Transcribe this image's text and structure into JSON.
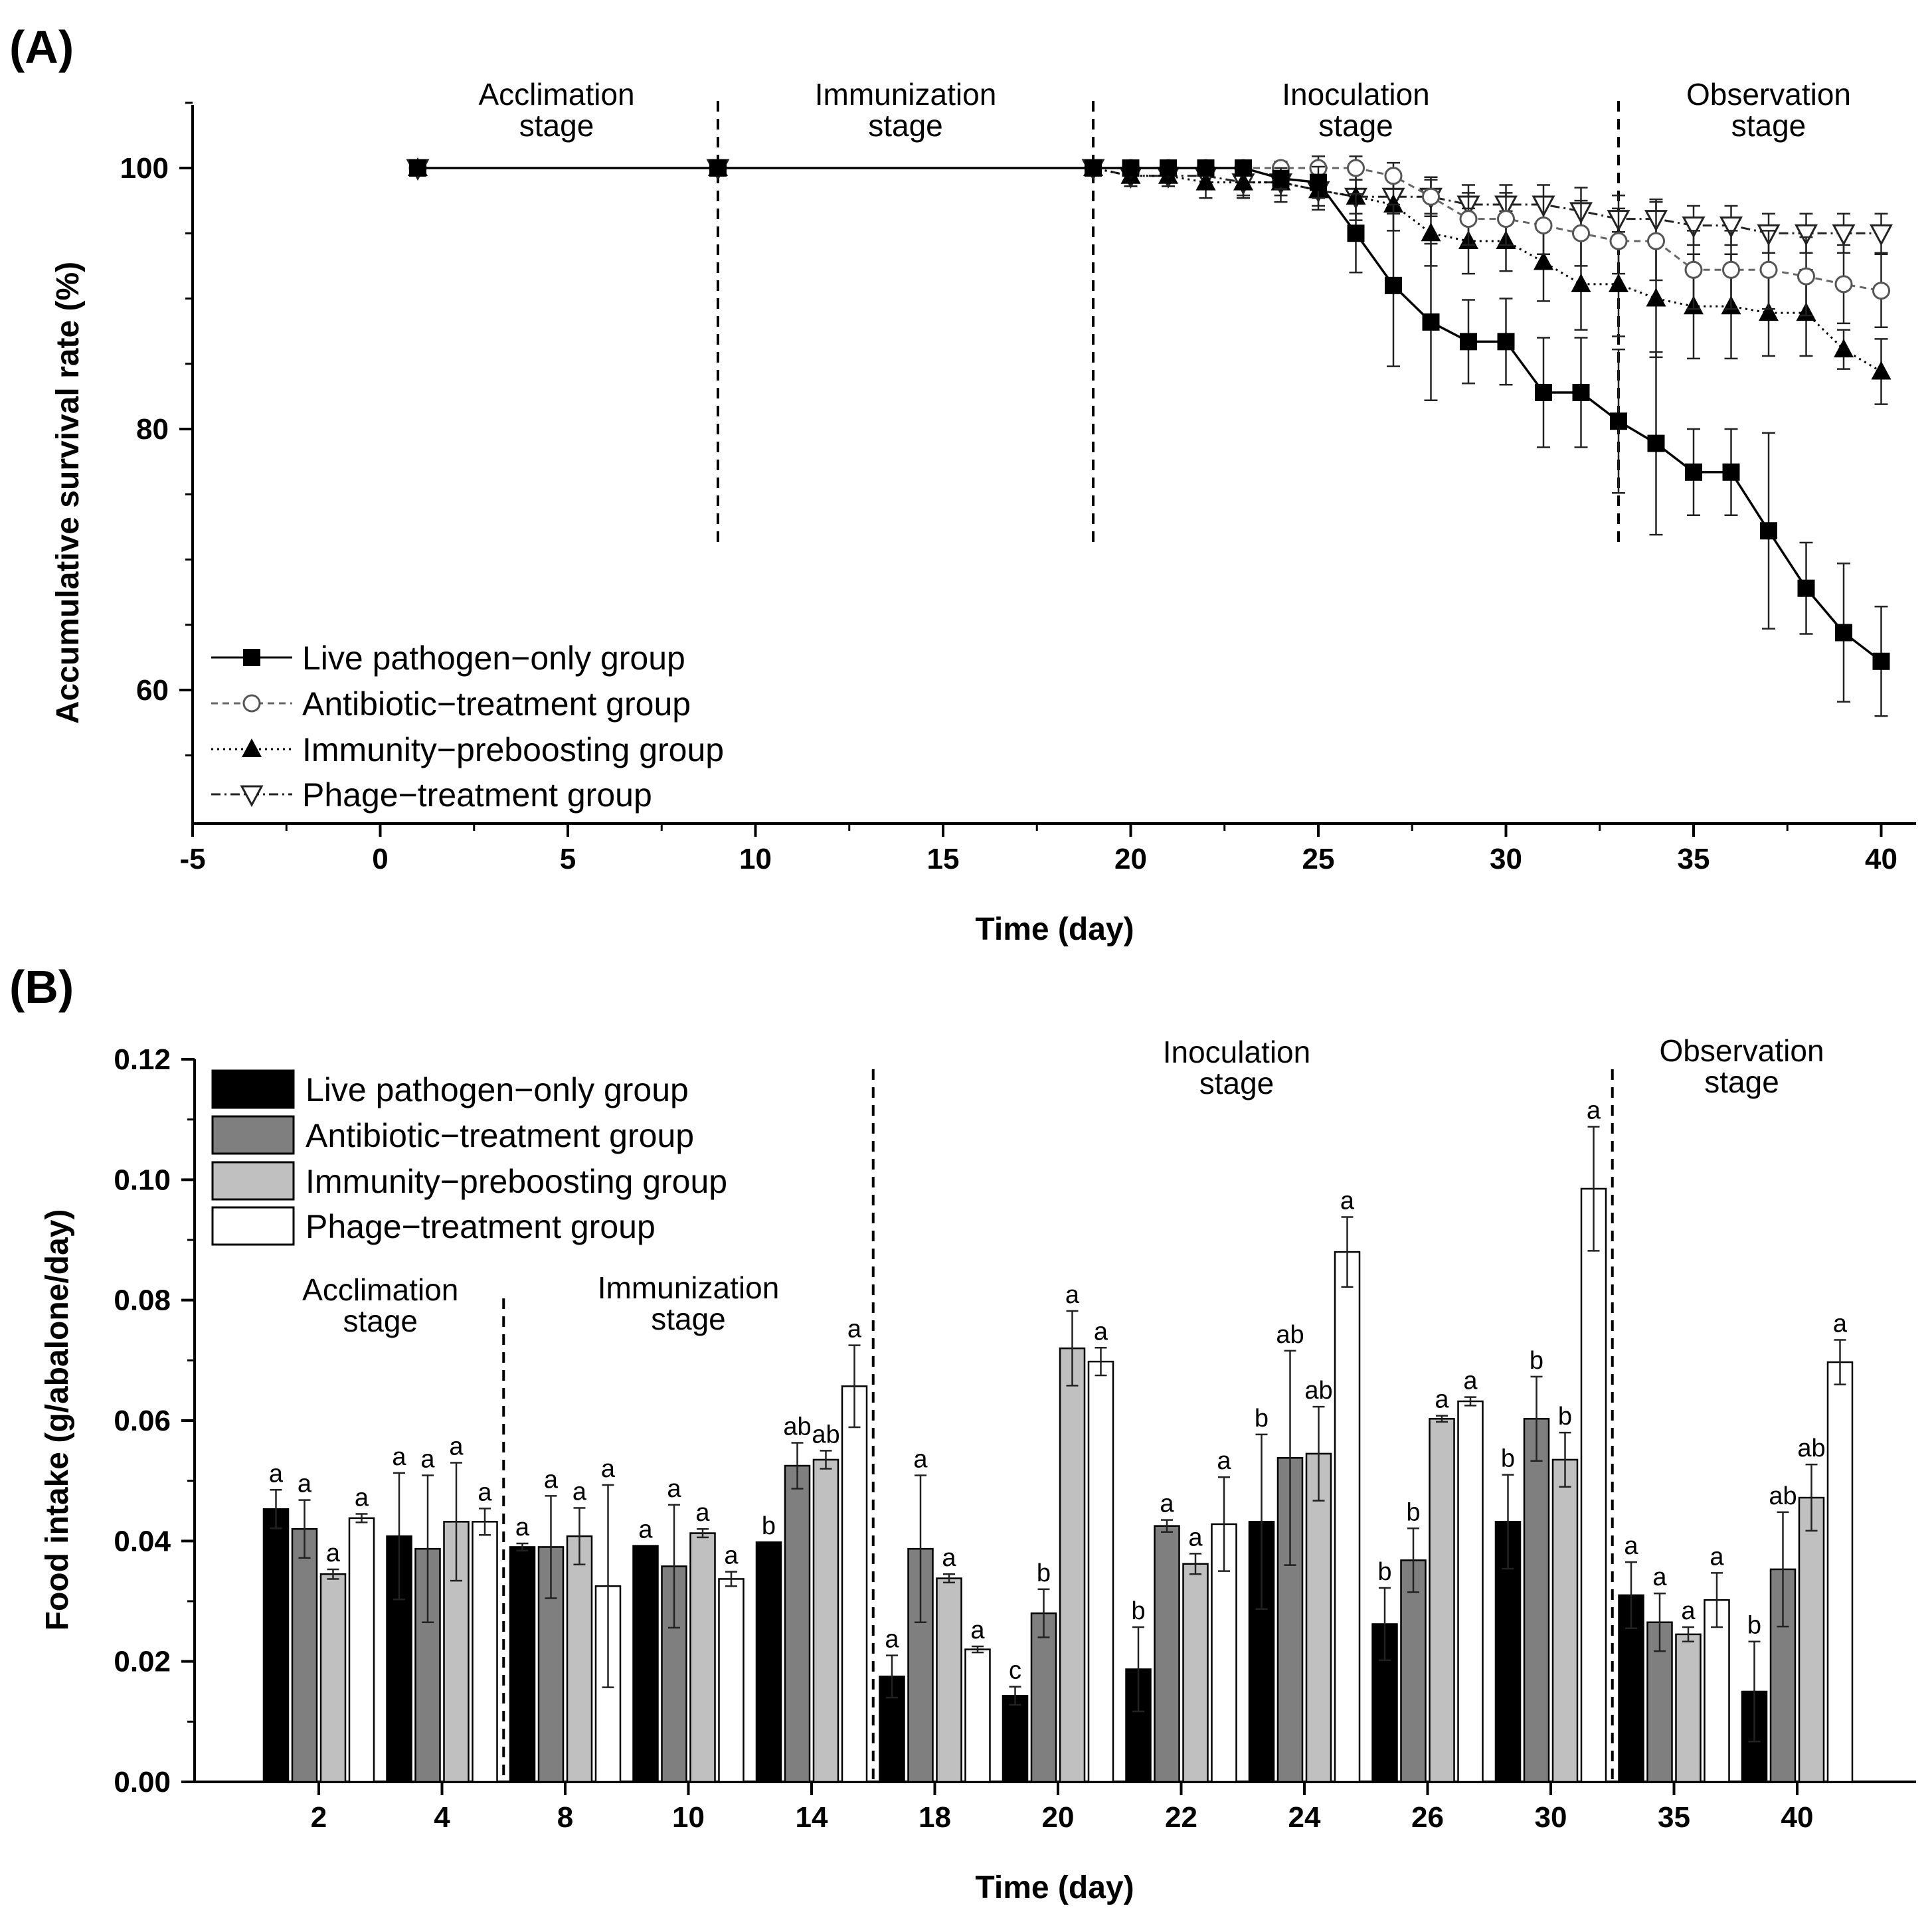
{
  "figure": {
    "panel_a_label": "(A)",
    "panel_b_label": "(B)"
  },
  "chart_data": [
    {
      "type": "line",
      "panel": "(A)",
      "title": "",
      "xlabel": "Time (day)",
      "ylabel": "Accumulative survival rate (%)",
      "xlim": [
        -5,
        41
      ],
      "ylim": [
        50,
        105
      ],
      "xticks": [
        -5,
        0,
        5,
        10,
        15,
        20,
        25,
        30,
        35,
        40
      ],
      "xtick_labels": [
        "-5",
        "0",
        "5",
        "10",
        "15",
        "20",
        "25",
        "30",
        "35",
        "40"
      ],
      "yticks": [
        60,
        80,
        100
      ],
      "ytick_labels": [
        "60",
        "80",
        "100"
      ],
      "grid": false,
      "legend_position": "bottom-left",
      "stage_dividers": [
        9,
        19,
        33
      ],
      "stages": [
        {
          "line1": "Acclimation",
          "line2": "stage",
          "x": 4.7
        },
        {
          "line1": "Immunization",
          "line2": "stage",
          "x": 14
        },
        {
          "line1": "Inoculation",
          "line2": "stage",
          "x": 26
        },
        {
          "line1": "Observation",
          "line2": "stage",
          "x": 37
        }
      ],
      "series": [
        {
          "name": "Live pathogen−only group",
          "marker": "square",
          "line": "solid",
          "x": [
            1,
            9,
            19,
            20,
            21,
            22,
            23,
            24,
            25,
            26,
            27,
            28,
            29,
            30,
            31,
            32,
            33,
            34,
            35,
            36,
            37,
            38,
            39,
            40
          ],
          "y": [
            100,
            100,
            100,
            100,
            100,
            100,
            100,
            99.2,
            98.9,
            95,
            91,
            88.2,
            86.7,
            86.7,
            82.8,
            82.8,
            80.6,
            78.9,
            76.7,
            76.7,
            72.2,
            67.8,
            64.4,
            62.2
          ],
          "err": [
            0,
            0,
            0,
            0,
            0,
            0,
            0,
            0.8,
            1.2,
            3,
            6.2,
            6,
            3.2,
            3.3,
            4.2,
            4.2,
            5.5,
            7,
            3.3,
            3.3,
            7.5,
            3.5,
            5.3,
            4.2
          ]
        },
        {
          "name": "Antibiotic−treatment group",
          "marker": "circle",
          "line": "dashed",
          "x": [
            1,
            9,
            19,
            20,
            21,
            22,
            23,
            24,
            25,
            26,
            27,
            28,
            29,
            30,
            31,
            32,
            33,
            34,
            35,
            36,
            37,
            38,
            39,
            40
          ],
          "y": [
            100,
            100,
            100,
            100,
            100,
            100,
            100,
            100,
            100,
            100,
            99.4,
            97.8,
            96.1,
            96.1,
            95.6,
            95,
            94.4,
            94.4,
            92.2,
            92.2,
            92.2,
            91.7,
            91.1,
            90.6
          ],
          "err": [
            0,
            0,
            0,
            0.5,
            0.5,
            0.5,
            0.5,
            0.5,
            0.9,
            0.9,
            1,
            1.5,
            2,
            2,
            2.2,
            2.5,
            2.5,
            3,
            3,
            3,
            3,
            3,
            3,
            2.8
          ]
        },
        {
          "name": "Immunity−preboosting group",
          "marker": "triangle-up",
          "line": "dotted",
          "x": [
            1,
            9,
            19,
            20,
            21,
            22,
            23,
            24,
            25,
            26,
            27,
            28,
            29,
            30,
            31,
            32,
            33,
            34,
            35,
            36,
            37,
            38,
            39,
            40
          ],
          "y": [
            100,
            100,
            100,
            99.4,
            99.4,
            98.9,
            98.9,
            98.9,
            98.3,
            97.8,
            97.2,
            95,
            94.4,
            94.4,
            92.8,
            91.1,
            91.1,
            90,
            89.4,
            89.4,
            88.9,
            88.9,
            86.1,
            84.4
          ],
          "err": [
            0,
            0,
            0,
            0.8,
            0.8,
            1.2,
            1.2,
            1.5,
            1.5,
            1.8,
            2,
            2.5,
            2.5,
            2.3,
            3,
            3.5,
            4,
            4.5,
            4,
            4,
            3.3,
            3.3,
            1.5,
            2.5
          ]
        },
        {
          "name": "Phage−treatment group",
          "marker": "triangle-down",
          "line": "dashdot",
          "x": [
            1,
            9,
            19,
            20,
            21,
            22,
            23,
            24,
            25,
            26,
            27,
            28,
            29,
            30,
            31,
            32,
            33,
            34,
            35,
            36,
            37,
            38,
            39,
            40
          ],
          "y": [
            100,
            100,
            100,
            99.4,
            99.4,
            99.4,
            98.9,
            98.9,
            98.3,
            97.8,
            97.8,
            97.8,
            97.2,
            97.2,
            97.2,
            96.7,
            96.1,
            96.1,
            95.6,
            95.6,
            95,
            95,
            95,
            95
          ],
          "err": [
            0,
            0,
            0,
            0.8,
            0.8,
            0.8,
            1,
            1,
            1.2,
            1.3,
            1.3,
            1.3,
            1.5,
            1.5,
            1.5,
            1.8,
            1.8,
            1.5,
            1.5,
            1.5,
            1.5,
            1.5,
            1.5,
            1.5
          ]
        }
      ]
    },
    {
      "type": "bar",
      "panel": "(B)",
      "title": "",
      "xlabel": "Time (day)",
      "ylabel": "Food intake (g/abalone/day)",
      "ylim": [
        0,
        0.12
      ],
      "yticks": [
        0,
        0.02,
        0.04,
        0.06,
        0.08,
        0.1,
        0.12
      ],
      "ytick_labels": [
        "0.00",
        "0.02",
        "0.04",
        "0.06",
        "0.08",
        "0.10",
        "0.12"
      ],
      "grid": false,
      "legend_position": "top-left",
      "categories": [
        "2",
        "4",
        "8",
        "10",
        "14",
        "18",
        "20",
        "22",
        "24",
        "26",
        "30",
        "35",
        "40"
      ],
      "stage_dividers_after_index": [
        1,
        4,
        10
      ],
      "stages": [
        {
          "line1": "Acclimation",
          "line2": "stage",
          "after_index": 0.5
        },
        {
          "line1": "Immunization",
          "line2": "stage",
          "after_index": 3
        },
        {
          "line1": "Inoculation",
          "line2": "stage",
          "after_index": 7.45
        },
        {
          "line1": "Observation",
          "line2": "stage",
          "after_index": 11.55
        }
      ],
      "series": [
        {
          "name": "Live pathogen−only group",
          "color": "#000000",
          "values": [
            0.0453,
            0.0408,
            0.039,
            0.0392,
            0.0398,
            0.0175,
            0.0143,
            0.0187,
            0.0432,
            0.0262,
            0.0432,
            0.031,
            0.015
          ],
          "err": [
            0.0032,
            0.0105,
            0.0006,
            0,
            0,
            0.0035,
            0.0015,
            0.007,
            0.0145,
            0.006,
            0.0078,
            0.0055,
            0.0083
          ],
          "letters": [
            "a",
            "a",
            "a",
            "a",
            "b",
            "a",
            "c",
            "b",
            "b",
            "b",
            "b",
            "a",
            "b"
          ]
        },
        {
          "name": "Antibiotic−treatment group",
          "color": "#7f7f7f",
          "values": [
            0.042,
            0.0387,
            0.039,
            0.0358,
            0.0525,
            0.0387,
            0.028,
            0.0425,
            0.0538,
            0.0368,
            0.0603,
            0.0265,
            0.0353
          ],
          "err": [
            0.0048,
            0.0122,
            0.0085,
            0.0102,
            0.0038,
            0.0122,
            0.004,
            0.001,
            0.0178,
            0.0053,
            0.007,
            0.0048,
            0.0095
          ],
          "letters": [
            "a",
            "a",
            "a",
            "a",
            "ab",
            "a",
            "b",
            "a",
            "ab",
            "b",
            "b",
            "a",
            "ab"
          ]
        },
        {
          "name": "Immunity−preboosting group",
          "color": "#c0c0c0",
          "values": [
            0.0345,
            0.0432,
            0.0408,
            0.0413,
            0.0535,
            0.0338,
            0.072,
            0.0362,
            0.0545,
            0.0603,
            0.0535,
            0.0245,
            0.0472
          ],
          "err": [
            0.0008,
            0.0098,
            0.0047,
            0.0007,
            0.0015,
            0.0007,
            0.0062,
            0.0017,
            0.0078,
            0.0005,
            0.0045,
            0.0012,
            0.0055
          ],
          "letters": [
            "a",
            "a",
            "a",
            "a",
            "ab",
            "a",
            "a",
            "a",
            "ab",
            "a",
            "b",
            "a",
            "ab"
          ]
        },
        {
          "name": "Phage−treatment group",
          "color": "#ffffff",
          "values": [
            0.0438,
            0.0432,
            0.0325,
            0.0337,
            0.0657,
            0.022,
            0.0698,
            0.0428,
            0.088,
            0.0632,
            0.0985,
            0.0302,
            0.0697
          ],
          "err": [
            0.0007,
            0.0022,
            0.0168,
            0.0012,
            0.0068,
            0.0005,
            0.0023,
            0.0078,
            0.0058,
            0.0007,
            0.0103,
            0.0045,
            0.0037
          ],
          "letters": [
            "a",
            "a",
            "a",
            "a",
            "a",
            "a",
            "a",
            "a",
            "a",
            "a",
            "a",
            "a",
            "a"
          ]
        }
      ]
    }
  ]
}
